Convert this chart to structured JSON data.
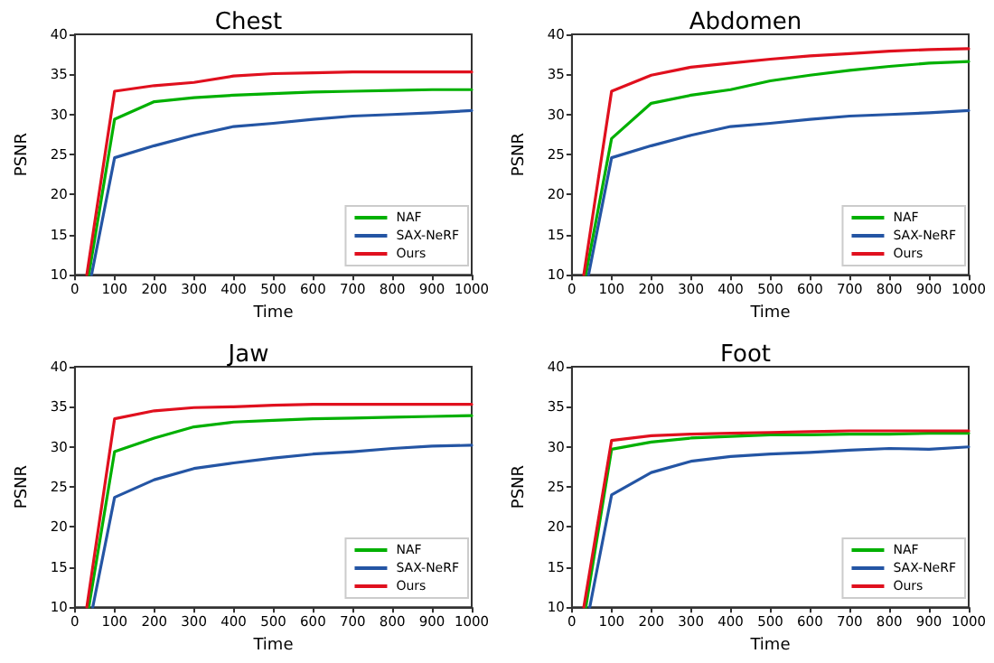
{
  "chart_data": [
    {
      "type": "line",
      "title": "Chest",
      "xlabel": "Time",
      "ylabel": "PSNR",
      "xlim": [
        0,
        1000
      ],
      "xticks": [
        0,
        100,
        200,
        300,
        400,
        500,
        600,
        700,
        800,
        900,
        1000
      ],
      "ylim": [
        10,
        40
      ],
      "yticks": [
        10,
        15,
        20,
        25,
        30,
        35,
        40
      ],
      "grid": false,
      "legend": "bottom right",
      "marker": "none",
      "line_style": "solid",
      "series": [
        {
          "name": "NAF",
          "color": "#00b000",
          "x": [
            35,
            100,
            200,
            300,
            400,
            500,
            600,
            700,
            800,
            900,
            1000
          ],
          "values": [
            10,
            29.4,
            31.6,
            32.1,
            32.4,
            32.6,
            32.8,
            32.9,
            33,
            33.1,
            33.1
          ]
        },
        {
          "name": "SAX-NeRF",
          "color": "#2455a4",
          "x": [
            42,
            100,
            200,
            300,
            400,
            500,
            600,
            700,
            800,
            900,
            1000
          ],
          "values": [
            10,
            24.6,
            26.1,
            27.4,
            28.5,
            28.9,
            29.4,
            29.8,
            30,
            30.2,
            30.5
          ]
        },
        {
          "name": "Ours",
          "color": "#e0101e",
          "x": [
            30,
            100,
            200,
            300,
            400,
            500,
            600,
            700,
            800,
            900,
            1000
          ],
          "values": [
            10,
            32.9,
            33.6,
            34,
            34.8,
            35.1,
            35.2,
            35.3,
            35.3,
            35.3,
            35.3
          ]
        }
      ]
    },
    {
      "type": "line",
      "title": "Abdomen",
      "xlabel": "Time",
      "ylabel": "PSNR",
      "xlim": [
        0,
        1000
      ],
      "xticks": [
        0,
        100,
        200,
        300,
        400,
        500,
        600,
        700,
        800,
        900,
        1000
      ],
      "ylim": [
        10,
        40
      ],
      "yticks": [
        10,
        15,
        20,
        25,
        30,
        35,
        40
      ],
      "grid": false,
      "legend": "bottom right",
      "marker": "none",
      "line_style": "solid",
      "series": [
        {
          "name": "NAF",
          "color": "#00b000",
          "x": [
            35,
            100,
            200,
            300,
            400,
            500,
            600,
            700,
            800,
            900,
            1000
          ],
          "values": [
            10,
            27,
            31.4,
            32.4,
            33.1,
            34.2,
            34.9,
            35.5,
            36,
            36.4,
            36.6
          ]
        },
        {
          "name": "SAX-NeRF",
          "color": "#2455a4",
          "x": [
            42,
            100,
            200,
            300,
            400,
            500,
            600,
            700,
            800,
            900,
            1000
          ],
          "values": [
            10,
            24.6,
            26.1,
            27.4,
            28.5,
            28.9,
            29.4,
            29.8,
            30,
            30.2,
            30.5
          ]
        },
        {
          "name": "Ours",
          "color": "#e0101e",
          "x": [
            30,
            100,
            200,
            300,
            400,
            500,
            600,
            700,
            800,
            900,
            1000
          ],
          "values": [
            10,
            32.9,
            34.9,
            35.9,
            36.4,
            36.9,
            37.3,
            37.6,
            37.9,
            38.1,
            38.2
          ]
        }
      ]
    },
    {
      "type": "line",
      "title": "Jaw",
      "xlabel": "Time",
      "ylabel": "PSNR",
      "xlim": [
        0,
        1000
      ],
      "xticks": [
        0,
        100,
        200,
        300,
        400,
        500,
        600,
        700,
        800,
        900,
        1000
      ],
      "ylim": [
        10,
        40
      ],
      "yticks": [
        10,
        15,
        20,
        25,
        30,
        35,
        40
      ],
      "grid": false,
      "legend": "bottom right",
      "marker": "none",
      "line_style": "solid",
      "series": [
        {
          "name": "NAF",
          "color": "#00b000",
          "x": [
            35,
            100,
            200,
            300,
            400,
            500,
            600,
            700,
            800,
            900,
            1000
          ],
          "values": [
            10,
            29.4,
            31.1,
            32.5,
            33.1,
            33.3,
            33.5,
            33.6,
            33.7,
            33.8,
            33.9
          ]
        },
        {
          "name": "SAX-NeRF",
          "color": "#2455a4",
          "x": [
            45,
            100,
            200,
            300,
            400,
            500,
            600,
            700,
            800,
            900,
            1000
          ],
          "values": [
            10,
            23.7,
            25.9,
            27.3,
            28,
            28.6,
            29.1,
            29.4,
            29.8,
            30.1,
            30.2
          ]
        },
        {
          "name": "Ours",
          "color": "#e0101e",
          "x": [
            30,
            100,
            200,
            300,
            400,
            500,
            600,
            700,
            800,
            900,
            1000
          ],
          "values": [
            10,
            33.5,
            34.5,
            34.9,
            35,
            35.2,
            35.3,
            35.3,
            35.3,
            35.3,
            35.3
          ]
        }
      ]
    },
    {
      "type": "line",
      "title": "Foot",
      "xlabel": "Time",
      "ylabel": "PSNR",
      "xlim": [
        0,
        1000
      ],
      "xticks": [
        0,
        100,
        200,
        300,
        400,
        500,
        600,
        700,
        800,
        900,
        1000
      ],
      "ylim": [
        10,
        40
      ],
      "yticks": [
        10,
        15,
        20,
        25,
        30,
        35,
        40
      ],
      "grid": false,
      "legend": "bottom right",
      "marker": "none",
      "line_style": "solid",
      "series": [
        {
          "name": "NAF",
          "color": "#00b000",
          "x": [
            35,
            100,
            200,
            300,
            400,
            500,
            600,
            700,
            800,
            900,
            1000
          ],
          "values": [
            10,
            29.7,
            30.6,
            31.1,
            31.3,
            31.5,
            31.5,
            31.6,
            31.6,
            31.7,
            31.7
          ]
        },
        {
          "name": "SAX-NeRF",
          "color": "#2455a4",
          "x": [
            45,
            100,
            200,
            300,
            400,
            500,
            600,
            700,
            800,
            900,
            1000
          ],
          "values": [
            10,
            24,
            26.8,
            28.2,
            28.8,
            29.1,
            29.3,
            29.6,
            29.8,
            29.7,
            30
          ]
        },
        {
          "name": "Ours",
          "color": "#e0101e",
          "x": [
            30,
            100,
            200,
            300,
            400,
            500,
            600,
            700,
            800,
            900,
            1000
          ],
          "values": [
            10,
            30.8,
            31.4,
            31.6,
            31.7,
            31.8,
            31.9,
            32,
            32,
            32,
            32
          ]
        }
      ]
    }
  ]
}
